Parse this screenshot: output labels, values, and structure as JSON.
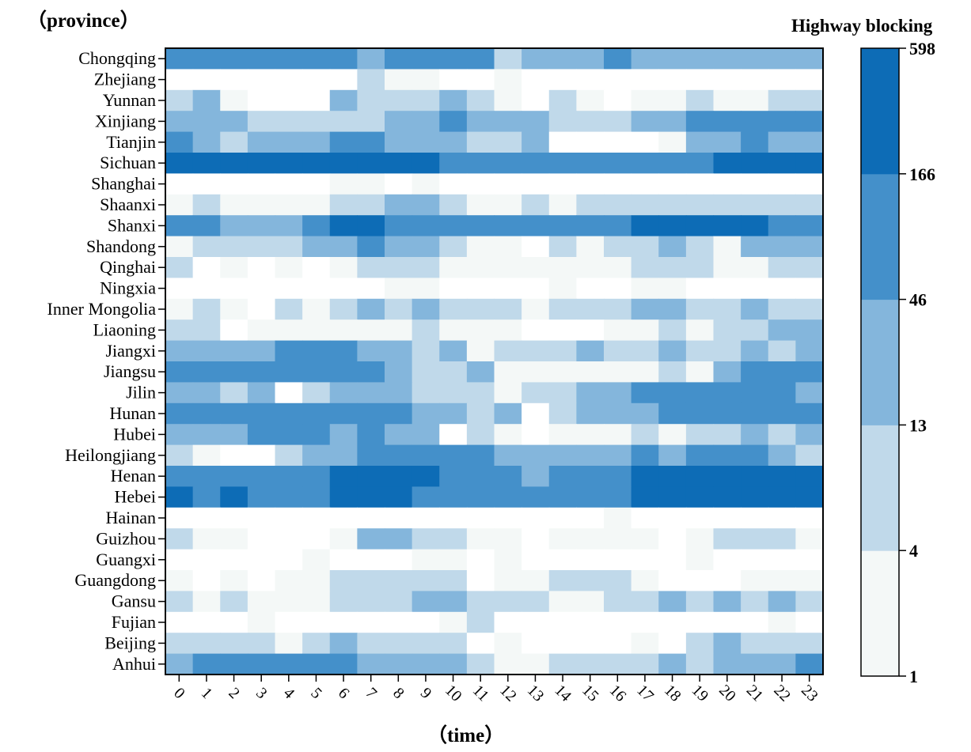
{
  "chart_data": {
    "type": "heatmap",
    "ylabel": "（province）",
    "xlabel": "（time）",
    "colorbar_title": "Highway blocking",
    "colorbar_ticks": [
      "598",
      "166",
      "46",
      "13",
      "4",
      "1"
    ],
    "x": [
      "0",
      "1",
      "2",
      "3",
      "4",
      "5",
      "6",
      "7",
      "8",
      "9",
      "10",
      "11",
      "12",
      "13",
      "14",
      "15",
      "16",
      "17",
      "18",
      "19",
      "20",
      "21",
      "22",
      "23"
    ],
    "rows": [
      "Chongqing",
      "Zhejiang",
      "Yunnan",
      "Xinjiang",
      "Tianjin",
      "Sichuan",
      "Shanghai",
      "Shaanxi",
      "Shanxi",
      "Shandong",
      "Qinghai",
      "Ningxia",
      "Inner Mongolia",
      "Liaoning",
      "Jiangxi",
      "Jiangsu",
      "Jilin",
      "Hunan",
      "Hubei",
      "Heilongjiang",
      "Henan",
      "Hebei",
      "Hainan",
      "Guizhou",
      "Guangxi",
      "Guangdong",
      "Gansu",
      "Fujian",
      "Beijing",
      "Anhui"
    ],
    "levels": [
      [
        4,
        4,
        4,
        4,
        4,
        4,
        4,
        3,
        4,
        4,
        4,
        4,
        2,
        3,
        3,
        3,
        4,
        3,
        3,
        3,
        3,
        3,
        3,
        3
      ],
      [
        0,
        0,
        0,
        0,
        0,
        0,
        0,
        2,
        1,
        1,
        0,
        0,
        1,
        0,
        0,
        0,
        0,
        0,
        0,
        0,
        0,
        0,
        0,
        0
      ],
      [
        2,
        3,
        1,
        0,
        0,
        0,
        3,
        2,
        2,
        2,
        3,
        2,
        1,
        0,
        2,
        1,
        0,
        1,
        1,
        2,
        1,
        1,
        2,
        2
      ],
      [
        3,
        3,
        3,
        2,
        2,
        2,
        2,
        2,
        3,
        3,
        4,
        3,
        3,
        3,
        2,
        2,
        2,
        3,
        3,
        4,
        4,
        4,
        4,
        4
      ],
      [
        4,
        3,
        2,
        3,
        3,
        3,
        4,
        4,
        3,
        3,
        3,
        2,
        2,
        3,
        0,
        0,
        0,
        0,
        1,
        3,
        3,
        4,
        3,
        3
      ],
      [
        5,
        5,
        5,
        5,
        5,
        5,
        5,
        5,
        5,
        5,
        4,
        4,
        4,
        4,
        4,
        4,
        4,
        4,
        4,
        4,
        5,
        5,
        5,
        5
      ],
      [
        0,
        0,
        0,
        0,
        0,
        0,
        1,
        1,
        0,
        1,
        0,
        0,
        0,
        0,
        0,
        0,
        0,
        0,
        0,
        0,
        0,
        0,
        0,
        0
      ],
      [
        1,
        2,
        1,
        1,
        1,
        1,
        2,
        2,
        3,
        3,
        2,
        1,
        1,
        2,
        1,
        2,
        2,
        2,
        2,
        2,
        2,
        2,
        2,
        2
      ],
      [
        4,
        4,
        3,
        3,
        3,
        4,
        5,
        5,
        4,
        4,
        4,
        4,
        4,
        4,
        4,
        4,
        4,
        5,
        5,
        5,
        5,
        5,
        4,
        4
      ],
      [
        1,
        2,
        2,
        2,
        2,
        3,
        3,
        4,
        3,
        3,
        2,
        1,
        1,
        0,
        2,
        1,
        2,
        2,
        3,
        2,
        1,
        3,
        3,
        3
      ],
      [
        2,
        0,
        1,
        0,
        1,
        0,
        1,
        2,
        2,
        2,
        1,
        1,
        1,
        1,
        1,
        1,
        1,
        2,
        2,
        2,
        1,
        1,
        2,
        2
      ],
      [
        0,
        0,
        0,
        0,
        0,
        0,
        0,
        0,
        1,
        1,
        0,
        0,
        0,
        0,
        1,
        0,
        0,
        1,
        1,
        0,
        0,
        0,
        0,
        0
      ],
      [
        1,
        2,
        1,
        0,
        2,
        1,
        2,
        3,
        2,
        3,
        2,
        2,
        2,
        1,
        2,
        2,
        2,
        3,
        3,
        2,
        2,
        3,
        2,
        2
      ],
      [
        2,
        2,
        0,
        1,
        1,
        1,
        1,
        1,
        1,
        2,
        1,
        1,
        1,
        0,
        0,
        0,
        1,
        1,
        2,
        1,
        2,
        2,
        3,
        3
      ],
      [
        3,
        3,
        3,
        3,
        4,
        4,
        4,
        3,
        3,
        2,
        3,
        1,
        2,
        2,
        2,
        3,
        2,
        2,
        3,
        2,
        2,
        3,
        2,
        3
      ],
      [
        4,
        4,
        4,
        4,
        4,
        4,
        4,
        4,
        3,
        2,
        2,
        3,
        1,
        1,
        1,
        1,
        1,
        1,
        2,
        1,
        3,
        4,
        4,
        4
      ],
      [
        3,
        3,
        2,
        3,
        0,
        2,
        3,
        3,
        3,
        2,
        2,
        2,
        1,
        2,
        2,
        3,
        3,
        4,
        4,
        4,
        4,
        4,
        4,
        3
      ],
      [
        4,
        4,
        4,
        4,
        4,
        4,
        4,
        4,
        4,
        3,
        3,
        2,
        3,
        0,
        2,
        3,
        3,
        3,
        4,
        4,
        4,
        4,
        4,
        4
      ],
      [
        3,
        3,
        3,
        4,
        4,
        4,
        3,
        4,
        3,
        3,
        0,
        2,
        1,
        0,
        1,
        1,
        1,
        2,
        1,
        2,
        2,
        3,
        2,
        3
      ],
      [
        2,
        1,
        0,
        0,
        2,
        3,
        3,
        4,
        4,
        4,
        4,
        4,
        3,
        3,
        3,
        3,
        3,
        4,
        3,
        4,
        4,
        4,
        3,
        2
      ],
      [
        4,
        4,
        4,
        4,
        4,
        4,
        5,
        5,
        5,
        5,
        4,
        4,
        4,
        3,
        4,
        4,
        4,
        5,
        5,
        5,
        5,
        5,
        5,
        5
      ],
      [
        5,
        4,
        5,
        4,
        4,
        4,
        5,
        5,
        5,
        4,
        4,
        4,
        4,
        4,
        4,
        4,
        4,
        5,
        5,
        5,
        5,
        5,
        5,
        5
      ],
      [
        0,
        0,
        0,
        0,
        0,
        0,
        0,
        0,
        0,
        0,
        0,
        0,
        0,
        0,
        0,
        0,
        1,
        0,
        0,
        0,
        0,
        0,
        0,
        0
      ],
      [
        2,
        1,
        1,
        0,
        0,
        0,
        1,
        3,
        3,
        2,
        2,
        1,
        1,
        0,
        1,
        1,
        1,
        1,
        0,
        1,
        2,
        2,
        2,
        1
      ],
      [
        0,
        0,
        0,
        0,
        0,
        1,
        0,
        0,
        0,
        1,
        1,
        0,
        1,
        0,
        0,
        0,
        0,
        0,
        0,
        1,
        0,
        0,
        0,
        0
      ],
      [
        1,
        0,
        1,
        0,
        1,
        1,
        2,
        2,
        2,
        2,
        2,
        0,
        1,
        1,
        2,
        2,
        2,
        1,
        0,
        0,
        0,
        1,
        1,
        1
      ],
      [
        2,
        1,
        2,
        1,
        1,
        1,
        2,
        2,
        2,
        3,
        3,
        2,
        2,
        2,
        1,
        1,
        2,
        2,
        3,
        2,
        3,
        2,
        3,
        2
      ],
      [
        0,
        0,
        0,
        1,
        0,
        0,
        0,
        0,
        0,
        0,
        1,
        2,
        0,
        0,
        0,
        0,
        0,
        0,
        0,
        0,
        0,
        0,
        1,
        0
      ],
      [
        2,
        2,
        2,
        2,
        1,
        2,
        3,
        2,
        2,
        2,
        2,
        0,
        1,
        0,
        0,
        0,
        0,
        1,
        0,
        2,
        3,
        2,
        2,
        2
      ],
      [
        3,
        4,
        4,
        4,
        4,
        4,
        4,
        3,
        3,
        3,
        3,
        2,
        1,
        1,
        2,
        2,
        2,
        2,
        3,
        2,
        3,
        3,
        3,
        4
      ]
    ],
    "level_colors": [
      "#ffffff",
      "#f4f8f7",
      "#c0d9ea",
      "#84b6dc",
      "#4490ca",
      "#0d6cb6"
    ],
    "colorbar_colors": [
      "#f4f8f7",
      "#c0d9ea",
      "#84b6dc",
      "#4490ca",
      "#0d6cb6"
    ]
  }
}
